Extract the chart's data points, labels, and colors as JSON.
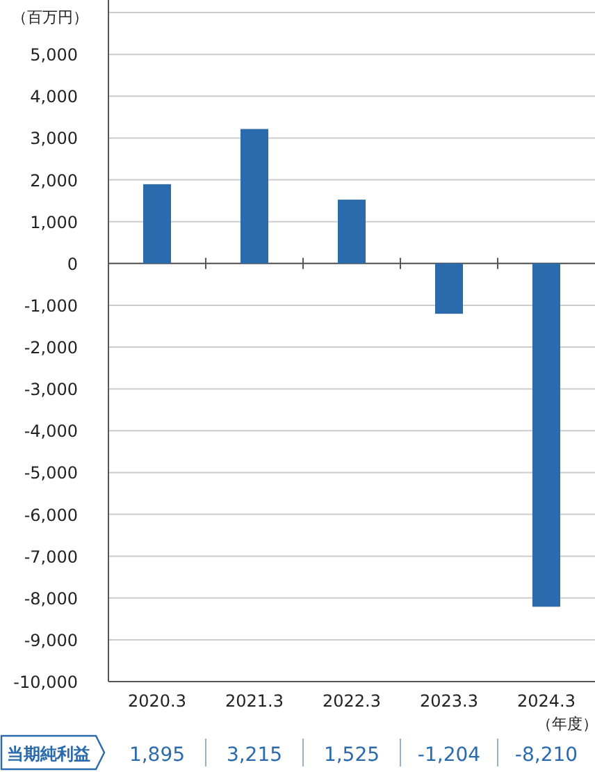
{
  "chart_data": {
    "type": "bar",
    "ylabel": "（百万円）",
    "xlabel": "（年度）",
    "categories": [
      "2020.3",
      "2021.3",
      "2022.3",
      "2023.3",
      "2024.3"
    ],
    "values": [
      1895,
      3215,
      1525,
      -1204,
      -8210
    ],
    "value_labels": [
      "1,895",
      "3,215",
      "1,525",
      "-1,204",
      "-8,210"
    ],
    "color": "#2a6aad",
    "ylim": [
      -10000,
      6300
    ],
    "yticks": [
      {
        "value": -10000,
        "label": "-10,000"
      },
      {
        "value": -9000,
        "label": "-9,000"
      },
      {
        "value": -8000,
        "label": "-8,000"
      },
      {
        "value": -7000,
        "label": "-7,000"
      },
      {
        "value": -6000,
        "label": "-6,000"
      },
      {
        "value": -5000,
        "label": "-5,000"
      },
      {
        "value": -4000,
        "label": "-4,000"
      },
      {
        "value": -3000,
        "label": "-3,000"
      },
      {
        "value": -2000,
        "label": "-2,000"
      },
      {
        "value": -1000,
        "label": "-1,000"
      },
      0,
      {
        "value": 1000,
        "label": "1,000"
      },
      {
        "value": 2000,
        "label": "2,000"
      },
      {
        "value": 3000,
        "label": "3,000"
      },
      {
        "value": 4000,
        "label": "4,000"
      },
      {
        "value": 5000,
        "label": "5,000"
      },
      {
        "value": 6000,
        "label": null
      }
    ],
    "grid": "y",
    "annotations": [
      "当期純利益"
    ]
  }
}
